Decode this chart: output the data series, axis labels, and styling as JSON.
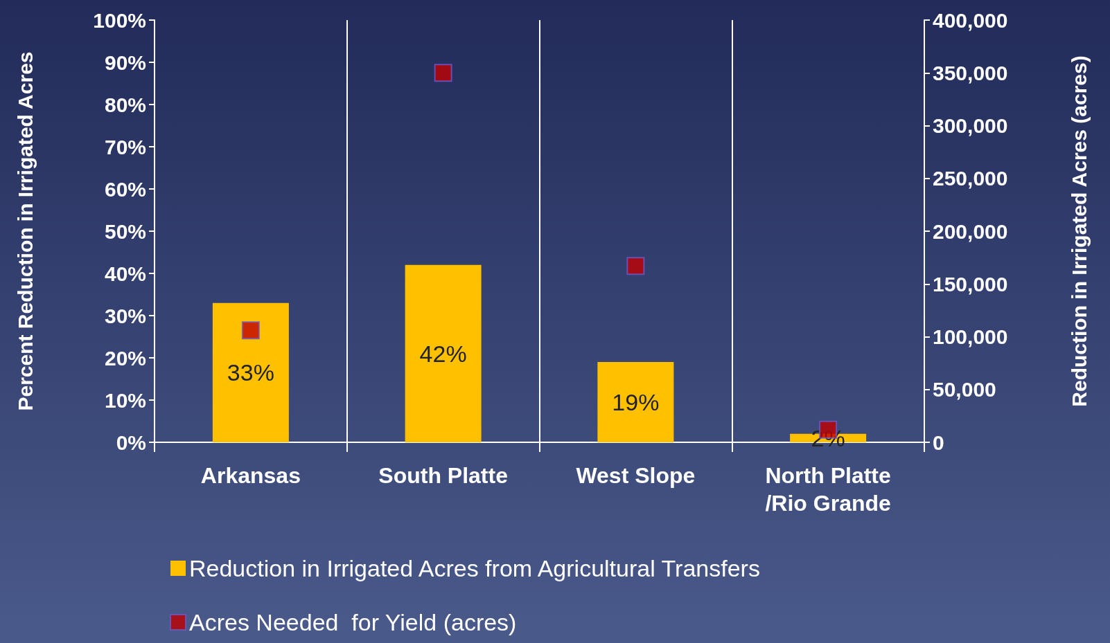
{
  "chart_data": {
    "type": "bar",
    "categories": [
      "Arkansas",
      "South Platte",
      "West Slope",
      "North Platte/Rio Grande"
    ],
    "series": [
      {
        "name": "Reduction in Irrigated Acres from Agricultural Transfers",
        "color": "#ffc000",
        "values": [
          33,
          42,
          19,
          2
        ],
        "value_labels": [
          "33%",
          "42%",
          "19%",
          "2%"
        ]
      },
      {
        "name": "Acres Needed  for Yield (acres)",
        "type": "scatter",
        "axis": "y2",
        "color": "#c00000",
        "values": [
          106000,
          350000,
          167000,
          12000
        ]
      }
    ],
    "ylabel": "Percent Reduction in Irrigated Acres",
    "y2label": "Reduction in Irrigated Acres (acres)",
    "ylim": [
      0,
      100
    ],
    "yticks": [
      {
        "value": 0,
        "label": "0%"
      },
      {
        "value": 10,
        "label": "10%"
      },
      {
        "value": 20,
        "label": "20%"
      },
      {
        "value": 30,
        "label": "30%"
      },
      {
        "value": 40,
        "label": "40%"
      },
      {
        "value": 50,
        "label": "50%"
      },
      {
        "value": 60,
        "label": "60%"
      },
      {
        "value": 70,
        "label": "70%"
      },
      {
        "value": 80,
        "label": "80%"
      },
      {
        "value": 90,
        "label": "90%"
      },
      {
        "value": 100,
        "label": "100%"
      }
    ],
    "y2lim": [
      0,
      400000
    ],
    "y2ticks": [
      {
        "value": 0,
        "label": "0"
      },
      {
        "value": 50000,
        "label": "50,000"
      },
      {
        "value": 100000,
        "label": "100,000"
      },
      {
        "value": 150000,
        "label": "150,000"
      },
      {
        "value": 200000,
        "label": "200,000"
      },
      {
        "value": 250000,
        "label": "250,000"
      },
      {
        "value": 300000,
        "label": "300,000"
      },
      {
        "value": 350000,
        "label": "350,000"
      },
      {
        "value": 400000,
        "label": "400,000"
      }
    ],
    "grid": "x",
    "legend": "bottom",
    "marker": "square"
  }
}
